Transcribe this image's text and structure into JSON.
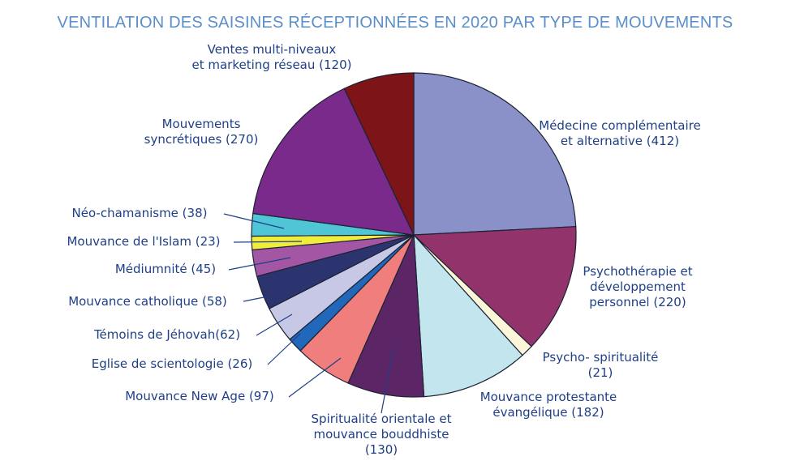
{
  "chart_data": {
    "type": "pie",
    "title": "VENTILATION DES SAISINES RÉCEPTIONNÉES EN 2020 PAR TYPE DE MOUVEMENTS",
    "slices": [
      {
        "lines": [
          "Médecine complémentaire",
          "et alternative (412)"
        ],
        "value": 412,
        "color": "#8a91c8"
      },
      {
        "lines": [
          "Psychothérapie et",
          "développement",
          "personnel (220)"
        ],
        "value": 220,
        "color": "#93336b"
      },
      {
        "lines": [
          "Psycho- spiritualité",
          "(21)"
        ],
        "value": 21,
        "color": "#fbf6d8"
      },
      {
        "lines": [
          "Mouvance protestante",
          "évangélique (182)"
        ],
        "value": 182,
        "color": "#c2e5ee"
      },
      {
        "lines": [
          "Spiritualité orientale et",
          "mouvance bouddhiste",
          "(130)"
        ],
        "value": 130,
        "color": "#5c2666"
      },
      {
        "lines": [
          "Mouvance New Age (97)"
        ],
        "value": 97,
        "color": "#ef7e7c"
      },
      {
        "lines": [
          "Eglise de scientologie (26)"
        ],
        "value": 26,
        "color": "#2168bb"
      },
      {
        "lines": [
          "Témoins de Jéhovah(62)"
        ],
        "value": 62,
        "color": "#c7c8e6"
      },
      {
        "lines": [
          "Mouvance catholique (58)"
        ],
        "value": 58,
        "color": "#2b346f"
      },
      {
        "lines": [
          "Médiumnité (45)"
        ],
        "value": 45,
        "color": "#a356a3"
      },
      {
        "lines": [
          "Mouvance de l'Islam (23)"
        ],
        "value": 23,
        "color": "#f1ed3b"
      },
      {
        "lines": [
          "Néo-chamanisme (38)"
        ],
        "value": 38,
        "color": "#4fc5d6"
      },
      {
        "lines": [
          "Mouvements",
          "syncrétiques (270)"
        ],
        "value": 270,
        "color": "#7a2a8b"
      },
      {
        "lines": [
          "Ventes multi-niveaux",
          "et marketing réseau (120)"
        ],
        "value": 120,
        "color": "#7c1418"
      }
    ]
  }
}
